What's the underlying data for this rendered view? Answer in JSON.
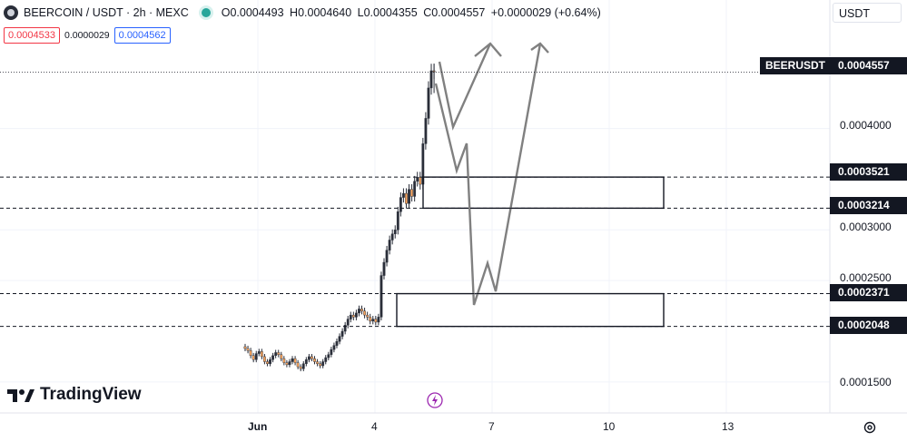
{
  "header": {
    "symbol": "BEERCOIN / USDT · 2h · MEXC",
    "open": "O0.0004493",
    "high": "H0.0004640",
    "low": "L0.0004355",
    "close": "C0.0004557",
    "change": "+0.0000029 (+0.64%)",
    "bid": "0.0004533",
    "spread": "0.0000029",
    "ask": "0.0004562"
  },
  "currency_selector": "USDT",
  "brand": "TradingView",
  "price_axis": {
    "labels": [
      "0.0004000",
      "0.0003000",
      "0.0002500",
      "0.0001500"
    ],
    "symbol_tag": "BEERUSDT",
    "last_price": "0.0004557",
    "level_tags": [
      "0.0003521",
      "0.0003214",
      "0.0002371",
      "0.0002048"
    ]
  },
  "time_axis": {
    "labels": [
      "Jun",
      "4",
      "7",
      "10",
      "13"
    ]
  },
  "colors": {
    "up": "#089981",
    "down": "#f23645",
    "candle": "#2a2e39",
    "projection": "#808080",
    "tag_bg": "#131722"
  },
  "chart_data": {
    "type": "candlestick",
    "title": "BEERCOIN / USDT · 2h · MEXC",
    "x_ticks": [
      "Jun",
      "4",
      "7",
      "10",
      "13"
    ],
    "ylim": [
      0.00012,
      0.00049
    ],
    "last_price": 0.0004557,
    "zones": [
      {
        "low": 0.0003214,
        "high": 0.0003521
      },
      {
        "low": 0.0002048,
        "high": 0.0002371
      }
    ],
    "closes": [
      0.000183,
      0.000181,
      0.000176,
      0.000172,
      0.000178,
      0.00018,
      0.000175,
      0.00017,
      0.000168,
      0.000172,
      0.000176,
      0.000179,
      0.000177,
      0.000173,
      0.000169,
      0.000167,
      0.00017,
      0.000173,
      0.000169,
      0.000165,
      0.000163,
      0.000168,
      0.000172,
      0.000175,
      0.000173,
      0.00017,
      0.000168,
      0.000166,
      0.00017,
      0.000174,
      0.000177,
      0.000182,
      0.000186,
      0.00019,
      0.000195,
      0.0002,
      0.000206,
      0.000212,
      0.000216,
      0.000214,
      0.000218,
      0.000222,
      0.00022,
      0.000216,
      0.000214,
      0.00021,
      0.000212,
      0.000209,
      0.000214,
      0.000255,
      0.000268,
      0.00028,
      0.00029,
      0.000296,
      0.0003,
      0.000318,
      0.000332,
      0.000336,
      0.000326,
      0.00034,
      0.000333,
      0.000348,
      0.000352,
      0.000345,
      0.000385,
      0.00041,
      0.00044,
      0.000457,
      0.0004557
    ],
    "projection_paths": [
      [
        [
          0.0004557,
          0.000441
        ],
        [
          0.000337,
          0.000492
        ],
        [
          0.000359,
          0.000512
        ],
        [
          0.000221,
          0.000532
        ],
        [
          0.00026,
          0.000546
        ],
        [
          0.000237,
          0.000561
        ],
        [
          0.000478,
          0.000607
        ]
      ],
      [
        [
          0.000474,
          0.000583
        ]
      ]
    ]
  }
}
